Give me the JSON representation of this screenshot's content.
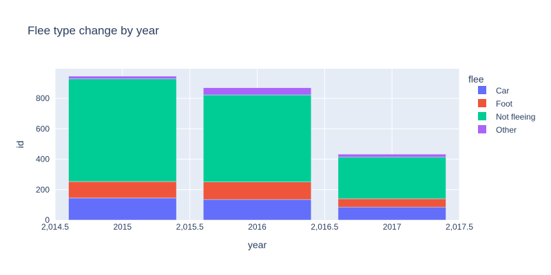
{
  "chart_data": {
    "type": "bar",
    "stacked": true,
    "title": "Flee type change by year",
    "xlabel": "year",
    "ylabel": "id",
    "categories": [
      2015,
      2016,
      2017
    ],
    "x_tick_labels": [
      "2,014.5",
      "2015",
      "2,015.5",
      "2016",
      "2,016.5",
      "2017",
      "2,017.5"
    ],
    "x_tick_values": [
      2014.5,
      2015,
      2015.5,
      2016,
      2016.5,
      2017,
      2017.5
    ],
    "xlim": [
      2014.5,
      2017.5
    ],
    "y_tick_labels": [
      "0",
      "200",
      "400",
      "600",
      "800"
    ],
    "y_tick_values": [
      0,
      200,
      400,
      600,
      800
    ],
    "ylim": [
      0,
      995
    ],
    "grid": true,
    "legend_title": "flee",
    "legend_position": "top-right",
    "series": [
      {
        "name": "Car",
        "color": "#636efa",
        "values": [
          145,
          135,
          85
        ]
      },
      {
        "name": "Foot",
        "color": "#ef553b",
        "values": [
          108,
          115,
          55
        ]
      },
      {
        "name": "Not fleeing",
        "color": "#00cc96",
        "values": [
          675,
          573,
          273
        ]
      },
      {
        "name": "Other",
        "color": "#ab63fa",
        "values": [
          18,
          47,
          20
        ]
      }
    ]
  }
}
